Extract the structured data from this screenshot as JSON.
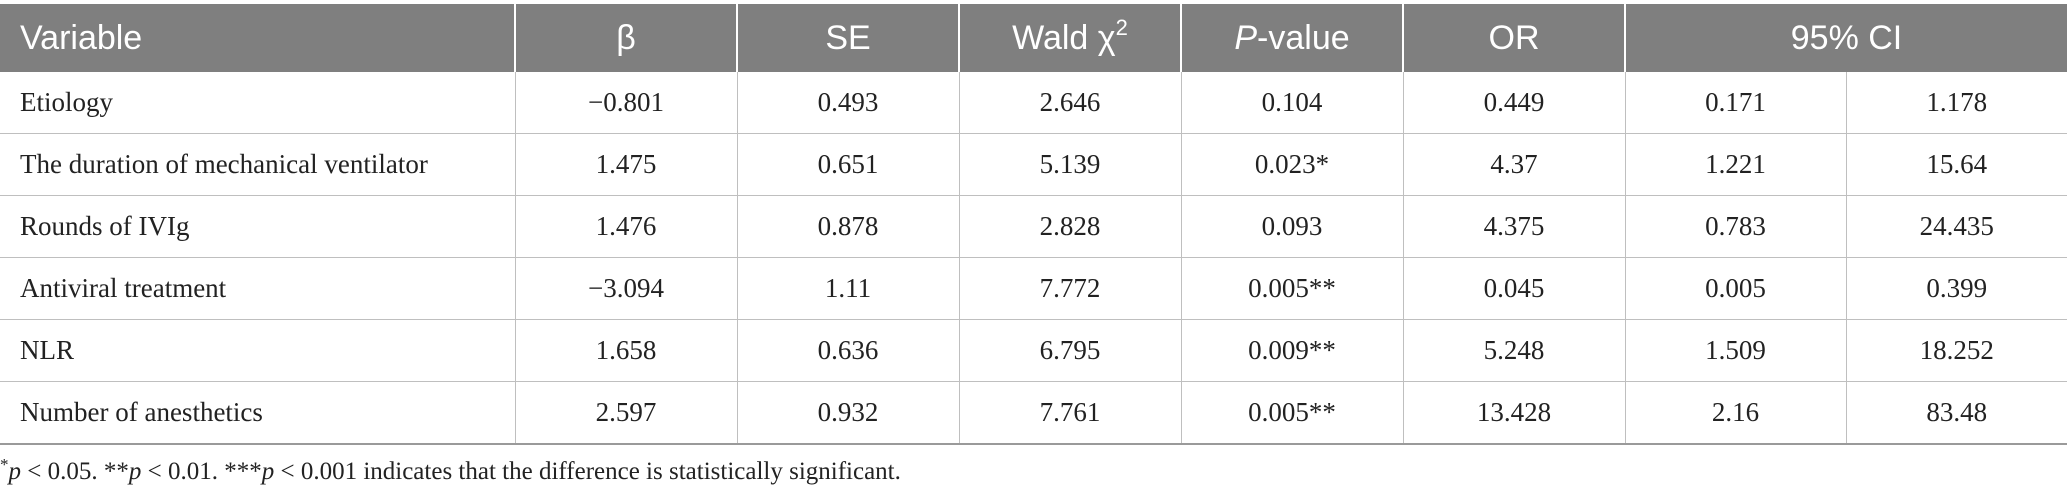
{
  "table": {
    "headers": {
      "variable": "Variable",
      "beta": "β",
      "se": "SE",
      "wald_text": "Wald χ",
      "wald_sup": "2",
      "p_italic": "P",
      "p_rest": "-value",
      "or": "OR",
      "ci": "95% CI"
    },
    "rows": [
      {
        "variable": "Etiology",
        "beta": "−0.801",
        "se": "0.493",
        "wald": "2.646",
        "p": "0.104",
        "or": "0.449",
        "ci_low": "0.171",
        "ci_high": "1.178"
      },
      {
        "variable": "The duration of mechanical ventilator",
        "beta": "1.475",
        "se": "0.651",
        "wald": "5.139",
        "p": "0.023*",
        "or": "4.37",
        "ci_low": "1.221",
        "ci_high": "15.64"
      },
      {
        "variable": "Rounds of IVIg",
        "beta": "1.476",
        "se": "0.878",
        "wald": "2.828",
        "p": "0.093",
        "or": "4.375",
        "ci_low": "0.783",
        "ci_high": "24.435"
      },
      {
        "variable": "Antiviral treatment",
        "beta": "−3.094",
        "se": "1.11",
        "wald": "7.772",
        "p": "0.005**",
        "or": "0.045",
        "ci_low": "0.005",
        "ci_high": "0.399"
      },
      {
        "variable": "NLR",
        "beta": "1.658",
        "se": "0.636",
        "wald": "6.795",
        "p": "0.009**",
        "or": "5.248",
        "ci_low": "1.509",
        "ci_high": "18.252"
      },
      {
        "variable": "Number of anesthetics",
        "beta": "2.597",
        "se": "0.932",
        "wald": "7.761",
        "p": "0.005**",
        "or": "13.428",
        "ci_low": "2.16",
        "ci_high": "83.48"
      }
    ]
  },
  "footnote": {
    "sup1": "*",
    "p1": "p",
    "t1": " < 0.05. **",
    "p2": "p",
    "t2": " < 0.01. ***",
    "p3": "p",
    "t3": " < 0.001 indicates that the difference is statistically significant."
  }
}
